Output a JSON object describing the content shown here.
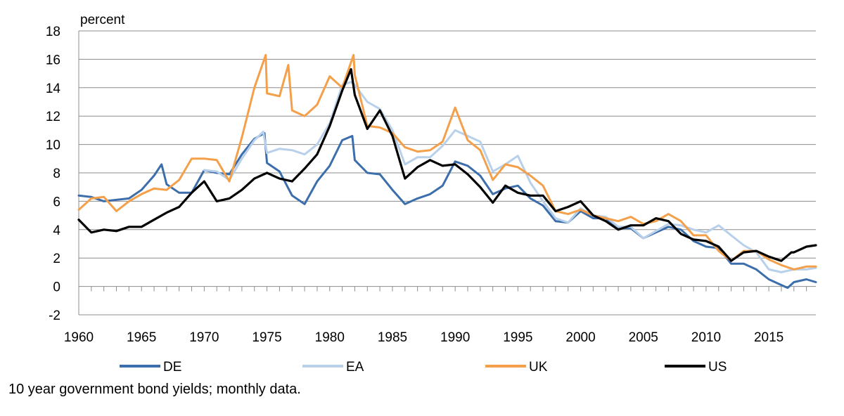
{
  "caption": "10 year government bond yields; monthly data.",
  "chart_data": {
    "type": "line",
    "unit_label": "percent",
    "xlim": [
      1960,
      2018.75
    ],
    "ylim": [
      -2,
      18
    ],
    "y_ticks": [
      -2,
      0,
      2,
      4,
      6,
      8,
      10,
      12,
      14,
      16,
      18
    ],
    "x_ticks": [
      1960,
      1965,
      1970,
      1975,
      1980,
      1985,
      1990,
      1995,
      2000,
      2005,
      2010,
      2015
    ],
    "grid": "horizontal",
    "legend_position": "bottom",
    "series": [
      {
        "name": "DE",
        "color": "#3c6eab",
        "points": [
          [
            1960,
            6.4
          ],
          [
            1961,
            6.3
          ],
          [
            1962,
            6.0
          ],
          [
            1963,
            6.1
          ],
          [
            1964,
            6.2
          ],
          [
            1965,
            6.8
          ],
          [
            1966,
            7.8
          ],
          [
            1966.6,
            8.6
          ],
          [
            1967,
            7.2
          ],
          [
            1968,
            6.6
          ],
          [
            1969,
            6.6
          ],
          [
            1970,
            8.2
          ],
          [
            1971,
            8.0
          ],
          [
            1972,
            7.9
          ],
          [
            1973,
            9.3
          ],
          [
            1974,
            10.4
          ],
          [
            1974.8,
            10.8
          ],
          [
            1975,
            8.7
          ],
          [
            1976,
            8.1
          ],
          [
            1977,
            6.4
          ],
          [
            1978,
            5.8
          ],
          [
            1979,
            7.4
          ],
          [
            1980,
            8.5
          ],
          [
            1981,
            10.3
          ],
          [
            1981.8,
            10.6
          ],
          [
            1982,
            8.9
          ],
          [
            1983,
            8.0
          ],
          [
            1984,
            7.9
          ],
          [
            1985,
            6.8
          ],
          [
            1986,
            5.8
          ],
          [
            1987,
            6.2
          ],
          [
            1988,
            6.5
          ],
          [
            1989,
            7.1
          ],
          [
            1990,
            8.8
          ],
          [
            1991,
            8.5
          ],
          [
            1992,
            7.8
          ],
          [
            1993,
            6.5
          ],
          [
            1994,
            6.9
          ],
          [
            1995,
            7.1
          ],
          [
            1996,
            6.2
          ],
          [
            1997,
            5.7
          ],
          [
            1998,
            4.6
          ],
          [
            1999,
            4.5
          ],
          [
            2000,
            5.3
          ],
          [
            2001,
            4.8
          ],
          [
            2002,
            4.8
          ],
          [
            2003,
            4.1
          ],
          [
            2004,
            4.1
          ],
          [
            2005,
            3.4
          ],
          [
            2006,
            3.8
          ],
          [
            2007,
            4.2
          ],
          [
            2008,
            4.0
          ],
          [
            2009,
            3.2
          ],
          [
            2010,
            2.8
          ],
          [
            2011,
            2.7
          ],
          [
            2012,
            1.6
          ],
          [
            2013,
            1.6
          ],
          [
            2014,
            1.2
          ],
          [
            2015,
            0.5
          ],
          [
            2016,
            0.1
          ],
          [
            2016.5,
            -0.1
          ],
          [
            2017,
            0.3
          ],
          [
            2018,
            0.5
          ],
          [
            2018.75,
            0.3
          ]
        ]
      },
      {
        "name": "EA",
        "color": "#b8d0ea",
        "points": [
          [
            1970,
            8.2
          ],
          [
            1971,
            8.1
          ],
          [
            1972,
            7.5
          ],
          [
            1973,
            9.0
          ],
          [
            1974,
            10.3
          ],
          [
            1974.7,
            10.9
          ],
          [
            1975,
            9.4
          ],
          [
            1976,
            9.7
          ],
          [
            1977,
            9.6
          ],
          [
            1978,
            9.3
          ],
          [
            1979,
            10.0
          ],
          [
            1980,
            11.5
          ],
          [
            1981,
            14.2
          ],
          [
            1981.7,
            14.4
          ],
          [
            1982,
            14.2
          ],
          [
            1983,
            13.0
          ],
          [
            1984,
            12.5
          ],
          [
            1985,
            11.0
          ],
          [
            1986,
            8.6
          ],
          [
            1987,
            9.1
          ],
          [
            1988,
            9.1
          ],
          [
            1989,
            9.9
          ],
          [
            1990,
            11.0
          ],
          [
            1991,
            10.6
          ],
          [
            1992,
            10.2
          ],
          [
            1993,
            8.1
          ],
          [
            1994,
            8.6
          ],
          [
            1995,
            9.2
          ],
          [
            1996,
            7.3
          ],
          [
            1997,
            6.0
          ],
          [
            1998,
            4.8
          ],
          [
            1999,
            4.5
          ],
          [
            2000,
            5.5
          ],
          [
            2001,
            5.0
          ],
          [
            2002,
            4.9
          ],
          [
            2003,
            4.2
          ],
          [
            2004,
            4.2
          ],
          [
            2005,
            3.4
          ],
          [
            2006,
            3.9
          ],
          [
            2007,
            4.4
          ],
          [
            2008,
            4.3
          ],
          [
            2009,
            4.0
          ],
          [
            2010,
            3.8
          ],
          [
            2011,
            4.3
          ],
          [
            2012,
            3.6
          ],
          [
            2013,
            2.9
          ],
          [
            2014,
            2.4
          ],
          [
            2015,
            1.2
          ],
          [
            2016,
            1.0
          ],
          [
            2017,
            1.2
          ],
          [
            2018,
            1.2
          ],
          [
            2018.75,
            1.3
          ]
        ]
      },
      {
        "name": "UK",
        "color": "#f4a04a",
        "points": [
          [
            1960,
            5.4
          ],
          [
            1961,
            6.2
          ],
          [
            1962,
            6.3
          ],
          [
            1963,
            5.3
          ],
          [
            1964,
            6.0
          ],
          [
            1965,
            6.5
          ],
          [
            1966,
            6.9
          ],
          [
            1967,
            6.8
          ],
          [
            1968,
            7.5
          ],
          [
            1969,
            9.0
          ],
          [
            1970,
            9.0
          ],
          [
            1971,
            8.9
          ],
          [
            1972,
            7.4
          ],
          [
            1973,
            10.5
          ],
          [
            1974,
            14.0
          ],
          [
            1974.9,
            16.3
          ],
          [
            1975,
            13.6
          ],
          [
            1976,
            13.4
          ],
          [
            1976.7,
            15.6
          ],
          [
            1977,
            12.4
          ],
          [
            1978,
            12.0
          ],
          [
            1979,
            12.8
          ],
          [
            1980,
            14.8
          ],
          [
            1981,
            14.0
          ],
          [
            1981.9,
            16.3
          ],
          [
            1982,
            14.9
          ],
          [
            1983,
            11.3
          ],
          [
            1984,
            11.2
          ],
          [
            1985,
            10.8
          ],
          [
            1986,
            9.8
          ],
          [
            1987,
            9.5
          ],
          [
            1988,
            9.6
          ],
          [
            1989,
            10.2
          ],
          [
            1990,
            12.6
          ],
          [
            1991,
            10.3
          ],
          [
            1992,
            9.6
          ],
          [
            1993,
            7.5
          ],
          [
            1994,
            8.6
          ],
          [
            1995,
            8.4
          ],
          [
            1996,
            7.8
          ],
          [
            1997,
            7.1
          ],
          [
            1998,
            5.3
          ],
          [
            1999,
            5.1
          ],
          [
            2000,
            5.4
          ],
          [
            2001,
            5.0
          ],
          [
            2002,
            4.8
          ],
          [
            2003,
            4.6
          ],
          [
            2004,
            4.9
          ],
          [
            2005,
            4.4
          ],
          [
            2006,
            4.6
          ],
          [
            2007,
            5.1
          ],
          [
            2008,
            4.6
          ],
          [
            2009,
            3.6
          ],
          [
            2010,
            3.6
          ],
          [
            2011,
            2.5
          ],
          [
            2012,
            1.8
          ],
          [
            2013,
            2.5
          ],
          [
            2014,
            2.5
          ],
          [
            2015,
            1.9
          ],
          [
            2016,
            1.5
          ],
          [
            2017,
            1.2
          ],
          [
            2018,
            1.4
          ],
          [
            2018.75,
            1.4
          ]
        ]
      },
      {
        "name": "US",
        "color": "#000000",
        "points": [
          [
            1960,
            4.7
          ],
          [
            1961,
            3.8
          ],
          [
            1962,
            4.0
          ],
          [
            1963,
            3.9
          ],
          [
            1964,
            4.2
          ],
          [
            1965,
            4.2
          ],
          [
            1966,
            4.7
          ],
          [
            1967,
            5.2
          ],
          [
            1968,
            5.6
          ],
          [
            1969,
            6.6
          ],
          [
            1970,
            7.4
          ],
          [
            1971,
            6.0
          ],
          [
            1972,
            6.2
          ],
          [
            1973,
            6.8
          ],
          [
            1974,
            7.6
          ],
          [
            1975,
            8.0
          ],
          [
            1976,
            7.6
          ],
          [
            1977,
            7.4
          ],
          [
            1978,
            8.3
          ],
          [
            1979,
            9.3
          ],
          [
            1980,
            11.3
          ],
          [
            1981,
            13.8
          ],
          [
            1981.7,
            15.3
          ],
          [
            1982,
            13.5
          ],
          [
            1983,
            11.1
          ],
          [
            1984,
            12.4
          ],
          [
            1985,
            10.6
          ],
          [
            1986,
            7.6
          ],
          [
            1987,
            8.4
          ],
          [
            1988,
            8.9
          ],
          [
            1989,
            8.5
          ],
          [
            1990,
            8.6
          ],
          [
            1991,
            7.9
          ],
          [
            1992,
            7.0
          ],
          [
            1993,
            5.9
          ],
          [
            1994,
            7.1
          ],
          [
            1995,
            6.6
          ],
          [
            1996,
            6.4
          ],
          [
            1997,
            6.4
          ],
          [
            1998,
            5.3
          ],
          [
            1999,
            5.6
          ],
          [
            2000,
            6.0
          ],
          [
            2001,
            5.0
          ],
          [
            2002,
            4.6
          ],
          [
            2003,
            4.0
          ],
          [
            2004,
            4.3
          ],
          [
            2005,
            4.3
          ],
          [
            2006,
            4.8
          ],
          [
            2007,
            4.6
          ],
          [
            2008,
            3.7
          ],
          [
            2009,
            3.3
          ],
          [
            2010,
            3.2
          ],
          [
            2011,
            2.8
          ],
          [
            2012,
            1.8
          ],
          [
            2013,
            2.4
          ],
          [
            2014,
            2.5
          ],
          [
            2015,
            2.1
          ],
          [
            2016,
            1.8
          ],
          [
            2016.8,
            2.4
          ],
          [
            2017,
            2.4
          ],
          [
            2018,
            2.8
          ],
          [
            2018.75,
            2.9
          ]
        ]
      }
    ]
  }
}
